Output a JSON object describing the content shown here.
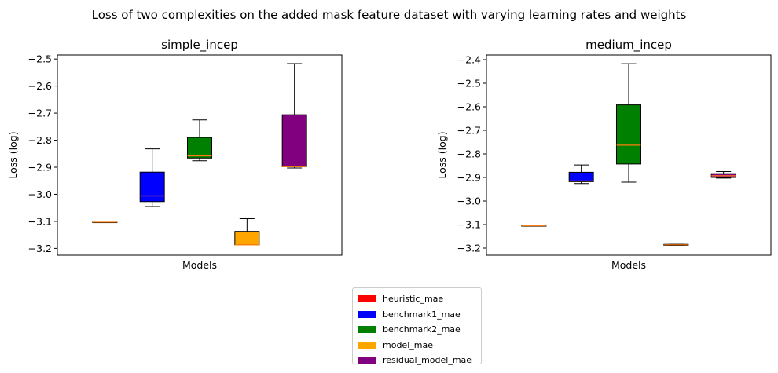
{
  "suptitle": "Loss of two complexities on the added mask feature dataset with varying learning rates and weights",
  "legend": [
    {
      "label": "heuristic_mae",
      "color": "#ff0000"
    },
    {
      "label": "benchmark1_mae",
      "color": "#0000ff"
    },
    {
      "label": "benchmark2_mae",
      "color": "#008000"
    },
    {
      "label": "model_mae",
      "color": "#ffa500"
    },
    {
      "label": "residual_model_mae",
      "color": "#800080"
    }
  ],
  "chart_data": [
    {
      "type": "box",
      "title": "simple_incep",
      "xlabel": "Models",
      "ylabel": "Loss (log)",
      "ylim": [
        -3.225,
        -2.485
      ],
      "yticks": [
        -2.5,
        -2.6,
        -2.7,
        -2.8,
        -2.9,
        -3.0,
        -3.1,
        -3.2
      ],
      "ytick_labels": [
        "−2.5",
        "−2.6",
        "−2.7",
        "−2.8",
        "−2.9",
        "−3.0",
        "−3.1",
        "−3.2"
      ],
      "boxes": [
        {
          "name": "heuristic_mae",
          "color": "#ff0000",
          "whislo": -3.103,
          "q1": -3.103,
          "med": -3.103,
          "q3": -3.103,
          "whishi": -3.103
        },
        {
          "name": "benchmark1_mae",
          "color": "#0000ff",
          "whislo": -3.045,
          "q1": -3.027,
          "med": -3.006,
          "q3": -2.918,
          "whishi": -2.832
        },
        {
          "name": "benchmark2_mae",
          "color": "#008000",
          "whislo": -2.876,
          "q1": -2.866,
          "med": -2.858,
          "q3": -2.79,
          "whishi": -2.725
        },
        {
          "name": "model_mae",
          "color": "#ffa500",
          "whislo": -3.187,
          "q1": -3.187,
          "med": -3.187,
          "q3": -3.137,
          "whishi": -3.09
        },
        {
          "name": "residual_model_mae",
          "color": "#800080",
          "whislo": -2.903,
          "q1": -2.898,
          "med": -2.898,
          "q3": -2.706,
          "whishi": -2.517
        }
      ]
    },
    {
      "type": "box",
      "title": "medium_incep",
      "xlabel": "Models",
      "ylabel": "Loss (log)",
      "ylim": [
        -3.23,
        -2.38
      ],
      "yticks": [
        -2.4,
        -2.5,
        -2.6,
        -2.7,
        -2.8,
        -2.9,
        -3.0,
        -3.1,
        -3.2
      ],
      "ytick_labels": [
        "−2.4",
        "−2.5",
        "−2.6",
        "−2.7",
        "−2.8",
        "−2.9",
        "−3.0",
        "−3.1",
        "−3.2"
      ],
      "boxes": [
        {
          "name": "heuristic_mae",
          "color": "#ff0000",
          "whislo": -3.105,
          "q1": -3.105,
          "med": -3.105,
          "q3": -3.105,
          "whishi": -3.105
        },
        {
          "name": "benchmark1_mae",
          "color": "#0000ff",
          "whislo": -2.926,
          "q1": -2.918,
          "med": -2.915,
          "q3": -2.878,
          "whishi": -2.847
        },
        {
          "name": "benchmark2_mae",
          "color": "#008000",
          "whislo": -2.92,
          "q1": -2.843,
          "med": -2.763,
          "q3": -2.592,
          "whishi": -2.417
        },
        {
          "name": "model_mae",
          "color": "#ffa500",
          "whislo": -3.188,
          "q1": -3.188,
          "med": -3.186,
          "q3": -3.184,
          "whishi": -3.184
        },
        {
          "name": "residual_model_mae",
          "color": "#800080",
          "whislo": -2.903,
          "q1": -2.9,
          "med": -2.893,
          "q3": -2.884,
          "whishi": -2.875
        }
      ]
    }
  ]
}
